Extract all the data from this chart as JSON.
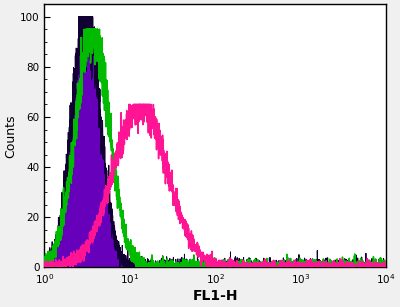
{
  "title": "",
  "xlabel": "FL1-H",
  "ylabel": "Counts",
  "xlim": [
    1,
    10000
  ],
  "ylim": [
    0,
    105
  ],
  "yticks": [
    0,
    20,
    40,
    60,
    80,
    100
  ],
  "background_color": "#f0f0f0",
  "plot_bg_color": "#ffffff",
  "border_color": "#000000",
  "purple_color": "#6600BB",
  "purple_fill_color": "#6600BB",
  "purple_mu_log": 0.55,
  "purple_sigma": 0.38,
  "purple_peak": 100,
  "green_color": "#00BB00",
  "green_mu_log": 0.65,
  "green_sigma": 0.45,
  "green_peak": 95,
  "pink_color": "#FF1493",
  "pink_mu_log": 1.35,
  "pink_sigma": 0.72,
  "pink_peak": 65,
  "noise_scale_purple": 1.8,
  "noise_scale_green": 1.5,
  "noise_scale_pink": 1.2,
  "figsize": [
    4.0,
    3.07
  ],
  "dpi": 100
}
